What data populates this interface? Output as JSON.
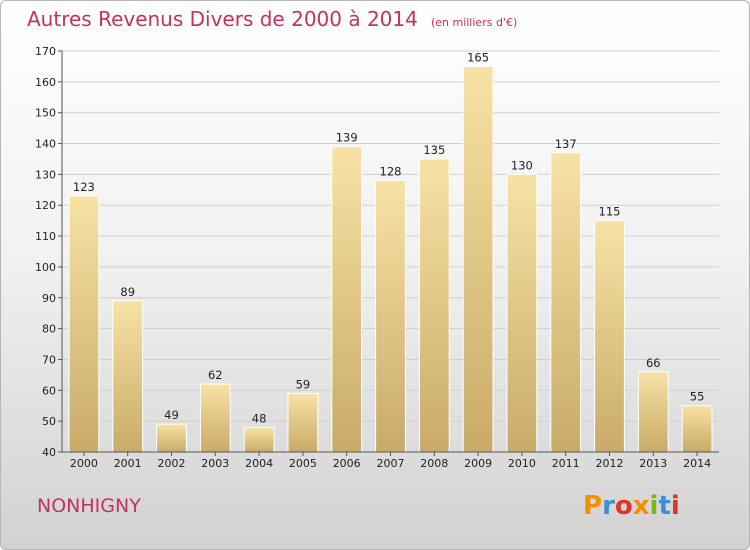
{
  "chart_data": {
    "type": "bar",
    "title": "Autres Revenus Divers de 2000 à 2014",
    "subtitle": "(en milliers d'€)",
    "categories": [
      "2000",
      "2001",
      "2002",
      "2003",
      "2004",
      "2005",
      "2006",
      "2007",
      "2008",
      "2009",
      "2010",
      "2011",
      "2012",
      "2013",
      "2014"
    ],
    "values": [
      123,
      89,
      49,
      62,
      48,
      59,
      139,
      128,
      135,
      165,
      130,
      137,
      115,
      66,
      55
    ],
    "ylim": [
      40,
      170
    ],
    "yticks": [
      40,
      50,
      60,
      70,
      80,
      90,
      100,
      110,
      120,
      130,
      140,
      150,
      160,
      170
    ],
    "grid": true,
    "bar_color": "#eccf82"
  },
  "commune": "NONHIGNY",
  "logo": {
    "letters": [
      "P",
      "r",
      "o",
      "x",
      "i",
      "t",
      "i"
    ],
    "colors": [
      "#f29100",
      "#3b8fd6",
      "#e4322b",
      "#f29100",
      "#7ab51d",
      "#3b8fd6",
      "#e4322b"
    ]
  }
}
